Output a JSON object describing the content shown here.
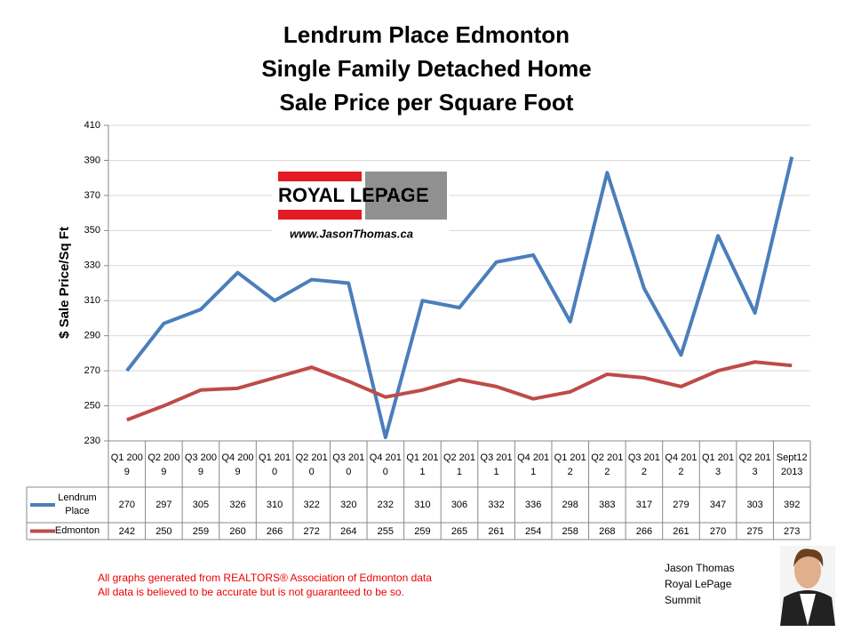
{
  "chart_data": {
    "type": "line",
    "title": [
      "Lendrum Place Edmonton",
      "Single Family Detached Home",
      "Sale Price per Square Foot"
    ],
    "y_label": "$ Sale Price/Sq Ft",
    "categories": [
      "Q1 2009",
      "Q2 2009",
      "Q3 2009",
      "Q4 2009",
      "Q1 2010",
      "Q2 2010",
      "Q3 2010",
      "Q4 2010",
      "Q1 2011",
      "Q2 2011",
      "Q3 2011",
      "Q4 2011",
      "Q1 2012",
      "Q2 2012",
      "Q3 2012",
      "Q4 2012",
      "Q1 2013",
      "Q2 2013",
      "Sept12 2013"
    ],
    "series": [
      {
        "name": "Lendrum Place",
        "color": "#4a7ebb",
        "values": [
          270,
          297,
          305,
          326,
          310,
          322,
          320,
          232,
          310,
          306,
          332,
          336,
          298,
          383,
          317,
          279,
          347,
          303,
          392
        ]
      },
      {
        "name": "Edmonton",
        "color": "#be4b48",
        "values": [
          242,
          250,
          259,
          260,
          266,
          272,
          264,
          255,
          259,
          265,
          261,
          254,
          258,
          268,
          266,
          261,
          270,
          275,
          273
        ]
      }
    ],
    "ylim": [
      230,
      410
    ],
    "yticks": [
      230,
      250,
      270,
      290,
      310,
      330,
      350,
      370,
      390,
      410
    ],
    "grid": true
  },
  "logo": {
    "brand": "ROYAL LEPAGE",
    "url": "www.JasonThomas.ca"
  },
  "footnote": [
    "All graphs generated from REALTORS® Association of Edmonton data",
    "All data is believed to be accurate but is not guaranteed to be so."
  ],
  "agent": [
    "Jason Thomas",
    "Royal LePage",
    "Summit"
  ]
}
